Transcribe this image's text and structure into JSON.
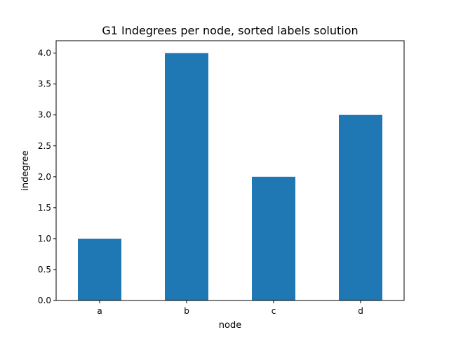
{
  "chart_data": {
    "type": "bar",
    "title": "G1 Indegrees per node, sorted labels solution",
    "xlabel": "node",
    "ylabel": "indegree",
    "categories": [
      "a",
      "b",
      "c",
      "d"
    ],
    "values": [
      1.0,
      4.0,
      2.0,
      3.0
    ],
    "ylim": [
      0,
      4.2
    ],
    "yticks": [
      "0.0",
      "0.5",
      "1.0",
      "1.5",
      "2.0",
      "2.5",
      "3.0",
      "3.5",
      "4.0"
    ],
    "bar_color": "#1f77b4",
    "grid": false,
    "legend": "none"
  }
}
